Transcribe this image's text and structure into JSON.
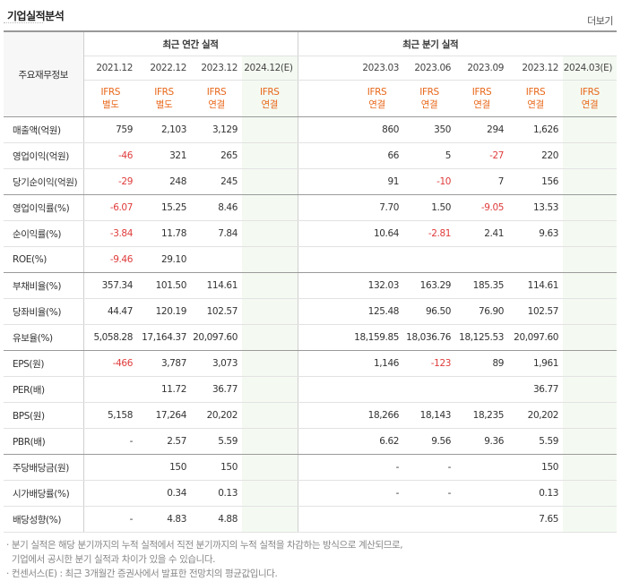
{
  "title": "기업실적분석",
  "more_link": "더보기",
  "header": {
    "row_label": "주요재무정보",
    "annual_group": "최근 연간 실적",
    "quarter_group": "최근 분기 실적",
    "annual": [
      {
        "period": "2021.12",
        "std_line1": "IFRS",
        "std_line2": "별도"
      },
      {
        "period": "2022.12",
        "std_line1": "IFRS",
        "std_line2": "별도"
      },
      {
        "period": "2023.12",
        "std_line1": "IFRS",
        "std_line2": "연결"
      },
      {
        "period": "2024.12(E)",
        "std_line1": "IFRS",
        "std_line2": "연결"
      }
    ],
    "quarter": [
      {
        "period": "2023.03",
        "std_line1": "IFRS",
        "std_line2": "연결"
      },
      {
        "period": "2023.06",
        "std_line1": "IFRS",
        "std_line2": "연결"
      },
      {
        "period": "2023.09",
        "std_line1": "IFRS",
        "std_line2": "연결"
      },
      {
        "period": "2023.12",
        "std_line1": "IFRS",
        "std_line2": "연결"
      },
      {
        "period": "2024.03(E)",
        "std_line1": "IFRS",
        "std_line2": "연결"
      }
    ]
  },
  "rows": [
    {
      "label": "매출액(억원)",
      "values": [
        "759",
        "2,103",
        "3,129",
        "",
        "860",
        "350",
        "294",
        "1,626",
        ""
      ]
    },
    {
      "label": "영업이익(억원)",
      "values": [
        "-46",
        "321",
        "265",
        "",
        "66",
        "5",
        "-27",
        "220",
        ""
      ]
    },
    {
      "label": "당기순이익(억원)",
      "values": [
        "-29",
        "248",
        "245",
        "",
        "91",
        "-10",
        "7",
        "156",
        ""
      ]
    },
    {
      "label": "영업이익률(%)",
      "values": [
        "-6.07",
        "15.25",
        "8.46",
        "",
        "7.70",
        "1.50",
        "-9.05",
        "13.53",
        ""
      ]
    },
    {
      "label": "순이익률(%)",
      "values": [
        "-3.84",
        "11.78",
        "7.84",
        "",
        "10.64",
        "-2.81",
        "2.41",
        "9.63",
        ""
      ]
    },
    {
      "label": "ROE(%)",
      "values": [
        "-9.46",
        "29.10",
        "",
        "",
        "",
        "",
        "",
        "",
        ""
      ]
    },
    {
      "label": "부채비율(%)",
      "values": [
        "357.34",
        "101.50",
        "114.61",
        "",
        "132.03",
        "163.29",
        "185.35",
        "114.61",
        ""
      ]
    },
    {
      "label": "당좌비율(%)",
      "values": [
        "44.47",
        "120.19",
        "102.57",
        "",
        "125.48",
        "96.50",
        "76.90",
        "102.57",
        ""
      ]
    },
    {
      "label": "유보율(%)",
      "values": [
        "5,058.28",
        "17,164.37",
        "20,097.60",
        "",
        "18,159.85",
        "18,036.76",
        "18,125.53",
        "20,097.60",
        ""
      ]
    },
    {
      "label": "EPS(원)",
      "values": [
        "-466",
        "3,787",
        "3,073",
        "",
        "1,146",
        "-123",
        "89",
        "1,961",
        ""
      ]
    },
    {
      "label": "PER(배)",
      "values": [
        "",
        "11.72",
        "36.77",
        "",
        "",
        "",
        "",
        "36.77",
        ""
      ]
    },
    {
      "label": "BPS(원)",
      "values": [
        "5,158",
        "17,264",
        "20,202",
        "",
        "18,266",
        "18,143",
        "18,235",
        "20,202",
        ""
      ]
    },
    {
      "label": "PBR(배)",
      "values": [
        "-",
        "2.57",
        "5.59",
        "",
        "6.62",
        "9.56",
        "9.36",
        "5.59",
        ""
      ]
    },
    {
      "label": "주당배당금(원)",
      "values": [
        "",
        "150",
        "150",
        "",
        "-",
        "-",
        "",
        "150",
        ""
      ]
    },
    {
      "label": "시가배당률(%)",
      "values": [
        "",
        "0.34",
        "0.13",
        "",
        "-",
        "-",
        "",
        "0.13",
        ""
      ]
    },
    {
      "label": "배당성향(%)",
      "values": [
        "-",
        "4.83",
        "4.88",
        "",
        "",
        "",
        "",
        "7.65",
        ""
      ]
    }
  ],
  "notes": [
    "· 분기 실적은 해당 분기까지의 누적 실적에서 직전 분기까지의 누적 실적을 차감하는 방식으로 계산되므로,",
    "  기업에서 공시한 분기 실적과 차이가 있을 수 있습니다.",
    "· 컨센서스(E) : 최근 3개월간 증권사에서 발표한 전망치의 평균값입니다."
  ]
}
